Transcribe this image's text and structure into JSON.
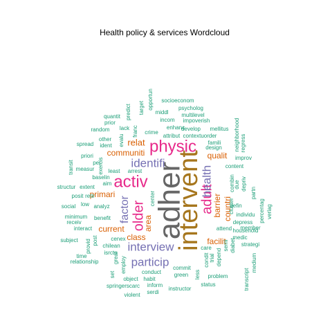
{
  "chart_data": {
    "type": "wordcloud",
    "title": "Health policy & services  Wordcloud",
    "colors": {
      "teal": "#1b9e77",
      "orange": "#d95f02",
      "purple": "#7570b3",
      "magenta": "#e7298a",
      "gold": "#a6761d",
      "gray": "#666666"
    },
    "words": [
      {
        "text": "adher",
        "size": 44,
        "color": "gray",
        "rotate": -90
      },
      {
        "text": "intervent",
        "size": 38,
        "color": "gold",
        "rotate": -90
      },
      {
        "text": "physic",
        "size": 24,
        "color": "magenta",
        "rotate": 0
      },
      {
        "text": "activ",
        "size": 24,
        "color": "magenta",
        "rotate": 0
      },
      {
        "text": "older",
        "size": 20,
        "color": "magenta",
        "rotate": -90
      },
      {
        "text": "adult",
        "size": 20,
        "color": "magenta",
        "rotate": -90
      },
      {
        "text": "health",
        "size": 17,
        "color": "purple",
        "rotate": -90
      },
      {
        "text": "identifi",
        "size": 17,
        "color": "purple",
        "rotate": 0
      },
      {
        "text": "interview",
        "size": 17,
        "color": "purple",
        "rotate": 0
      },
      {
        "text": "particip",
        "size": 17,
        "color": "purple",
        "rotate": 0
      },
      {
        "text": "factor",
        "size": 16,
        "color": "purple",
        "rotate": -90
      },
      {
        "text": "relat",
        "size": 13,
        "color": "orange",
        "rotate": 0
      },
      {
        "text": "communiti",
        "size": 12,
        "color": "orange",
        "rotate": 0
      },
      {
        "text": "qualit",
        "size": 12,
        "color": "orange",
        "rotate": 0
      },
      {
        "text": "primari",
        "size": 12,
        "color": "orange",
        "rotate": 0
      },
      {
        "text": "area",
        "size": 12,
        "color": "orange",
        "rotate": -90
      },
      {
        "text": "current",
        "size": 12,
        "color": "orange",
        "rotate": 0
      },
      {
        "text": "class",
        "size": 12,
        "color": "orange",
        "rotate": 0
      },
      {
        "text": "barrier",
        "size": 12,
        "color": "orange",
        "rotate": -90
      },
      {
        "text": "countri",
        "size": 12,
        "color": "orange",
        "rotate": -90
      },
      {
        "text": "facilit",
        "size": 12,
        "color": "orange",
        "rotate": 0
      },
      {
        "text": "socioeconom",
        "size": 8,
        "color": "teal",
        "rotate": 0
      },
      {
        "text": "psycholog",
        "size": 8,
        "color": "teal",
        "rotate": 0
      },
      {
        "text": "multilevel",
        "size": 8,
        "color": "teal",
        "rotate": 0
      },
      {
        "text": "middl",
        "size": 8,
        "color": "teal",
        "rotate": 0
      },
      {
        "text": "incom",
        "size": 8,
        "color": "teal",
        "rotate": 0
      },
      {
        "text": "impoverish",
        "size": 8,
        "color": "teal",
        "rotate": 0
      },
      {
        "text": "enhanc",
        "size": 8,
        "color": "teal",
        "rotate": 0
      },
      {
        "text": "develop",
        "size": 8,
        "color": "teal",
        "rotate": 0
      },
      {
        "text": "mellitus",
        "size": 8,
        "color": "teal",
        "rotate": 0
      },
      {
        "text": "contextuorder",
        "size": 8,
        "color": "teal",
        "rotate": 0
      },
      {
        "text": "attribut",
        "size": 8,
        "color": "teal",
        "rotate": 0
      },
      {
        "text": "crime",
        "size": 8,
        "color": "teal",
        "rotate": 0
      },
      {
        "text": "famili",
        "size": 8,
        "color": "teal",
        "rotate": 0
      },
      {
        "text": "design",
        "size": 8,
        "color": "teal",
        "rotate": 0
      },
      {
        "text": "improv",
        "size": 8,
        "color": "teal",
        "rotate": 0
      },
      {
        "text": "content",
        "size": 8,
        "color": "teal",
        "rotate": 0
      },
      {
        "text": "individu",
        "size": 8,
        "color": "teal",
        "rotate": 0
      },
      {
        "text": "depress",
        "size": 8,
        "color": "teal",
        "rotate": 0
      },
      {
        "text": "household",
        "size": 8,
        "color": "teal",
        "rotate": 0
      },
      {
        "text": "member",
        "size": 8,
        "color": "teal",
        "rotate": 0
      },
      {
        "text": "medic",
        "size": 8,
        "color": "teal",
        "rotate": 0
      },
      {
        "text": "strategi",
        "size": 8,
        "color": "teal",
        "rotate": 0
      },
      {
        "text": "defin",
        "size": 8,
        "color": "teal",
        "rotate": 0
      },
      {
        "text": "attend",
        "size": 8,
        "color": "teal",
        "rotate": 0
      },
      {
        "text": "care",
        "size": 8,
        "color": "teal",
        "rotate": 0
      },
      {
        "text": "problem",
        "size": 8,
        "color": "teal",
        "rotate": 0
      },
      {
        "text": "status",
        "size": 8,
        "color": "teal",
        "rotate": 0
      },
      {
        "text": "green",
        "size": 8,
        "color": "teal",
        "rotate": 0
      },
      {
        "text": "commit",
        "size": 8,
        "color": "teal",
        "rotate": 0
      },
      {
        "text": "conduct",
        "size": 8,
        "color": "teal",
        "rotate": 0
      },
      {
        "text": "habit",
        "size": 8,
        "color": "teal",
        "rotate": 0
      },
      {
        "text": "object",
        "size": 8,
        "color": "teal",
        "rotate": 0
      },
      {
        "text": "inform",
        "size": 8,
        "color": "teal",
        "rotate": 0
      },
      {
        "text": "instructor",
        "size": 8,
        "color": "teal",
        "rotate": 0
      },
      {
        "text": "springerscarc",
        "size": 8,
        "color": "teal",
        "rotate": 0
      },
      {
        "text": "serdi",
        "size": 8,
        "color": "teal",
        "rotate": 0
      },
      {
        "text": "violent",
        "size": 8,
        "color": "teal",
        "rotate": 0
      },
      {
        "text": "time",
        "size": 8,
        "color": "teal",
        "rotate": 0
      },
      {
        "text": "relationship",
        "size": 8,
        "color": "teal",
        "rotate": 0
      },
      {
        "text": "isrctn",
        "size": 8,
        "color": "teal",
        "rotate": 0
      },
      {
        "text": "chilean",
        "size": 8,
        "color": "teal",
        "rotate": 0
      },
      {
        "text": "cenex",
        "size": 8,
        "color": "teal",
        "rotate": 0
      },
      {
        "text": "subject",
        "size": 8,
        "color": "teal",
        "rotate": 0
      },
      {
        "text": "interact",
        "size": 8,
        "color": "teal",
        "rotate": 0
      },
      {
        "text": "receiv",
        "size": 8,
        "color": "teal",
        "rotate": 0
      },
      {
        "text": "minimum",
        "size": 8,
        "color": "teal",
        "rotate": 0
      },
      {
        "text": "benefit",
        "size": 8,
        "color": "teal",
        "rotate": 0
      },
      {
        "text": "social",
        "size": 8,
        "color": "teal",
        "rotate": 0
      },
      {
        "text": "low",
        "size": 8,
        "color": "teal",
        "rotate": 0
      },
      {
        "text": "analyz",
        "size": 8,
        "color": "teal",
        "rotate": 0
      },
      {
        "text": "posit",
        "size": 8,
        "color": "teal",
        "rotate": 0
      },
      {
        "text": "retir",
        "size": 8,
        "color": "teal",
        "rotate": 0
      },
      {
        "text": "aim",
        "size": 8,
        "color": "teal",
        "rotate": 0
      },
      {
        "text": "structur",
        "size": 8,
        "color": "teal",
        "rotate": 0
      },
      {
        "text": "extent",
        "size": 8,
        "color": "teal",
        "rotate": 0
      },
      {
        "text": "baselin",
        "size": 8,
        "color": "teal",
        "rotate": 0
      },
      {
        "text": "measur",
        "size": 8,
        "color": "teal",
        "rotate": 0
      },
      {
        "text": "least",
        "size": 8,
        "color": "teal",
        "rotate": 0
      },
      {
        "text": "arrest",
        "size": 8,
        "color": "teal",
        "rotate": 0
      },
      {
        "text": "per",
        "size": 8,
        "color": "teal",
        "rotate": 0
      },
      {
        "text": "priori",
        "size": 8,
        "color": "teal",
        "rotate": 0
      },
      {
        "text": "spread",
        "size": 8,
        "color": "teal",
        "rotate": 0
      },
      {
        "text": "ident",
        "size": 8,
        "color": "teal",
        "rotate": 0
      },
      {
        "text": "other",
        "size": 8,
        "color": "teal",
        "rotate": 0
      },
      {
        "text": "random",
        "size": 8,
        "color": "teal",
        "rotate": 0
      },
      {
        "text": "lack",
        "size": 8,
        "color": "teal",
        "rotate": 0
      },
      {
        "text": "prior",
        "size": 8,
        "color": "teal",
        "rotate": 0
      },
      {
        "text": "quantit",
        "size": 8,
        "color": "teal",
        "rotate": 0
      },
      {
        "text": "center",
        "size": 8,
        "color": "teal",
        "rotate": -90
      },
      {
        "text": "great",
        "size": 8,
        "color": "teal",
        "rotate": -90
      },
      {
        "text": "employ",
        "size": 8,
        "color": "teal",
        "rotate": -90
      },
      {
        "text": "set",
        "size": 8,
        "color": "teal",
        "rotate": -90
      },
      {
        "text": "provid",
        "size": 8,
        "color": "teal",
        "rotate": -90
      },
      {
        "text": "post",
        "size": 8,
        "color": "teal",
        "rotate": -90
      },
      {
        "text": "transit",
        "size": 8,
        "color": "teal",
        "rotate": -90
      },
      {
        "text": "exercis",
        "size": 8,
        "color": "teal",
        "rotate": -90
      },
      {
        "text": "evalu",
        "size": 8,
        "color": "teal",
        "rotate": -90
      },
      {
        "text": "franc",
        "size": 8,
        "color": "teal",
        "rotate": -90
      },
      {
        "text": "predict",
        "size": 8,
        "color": "teal",
        "rotate": -90
      },
      {
        "text": "target",
        "size": 8,
        "color": "teal",
        "rotate": -90
      },
      {
        "text": "opportun",
        "size": 8,
        "color": "teal",
        "rotate": -90
      },
      {
        "text": "neighborhood",
        "size": 8,
        "color": "teal",
        "rotate": -90
      },
      {
        "text": "regress",
        "size": 8,
        "color": "teal",
        "rotate": -90
      },
      {
        "text": "combin",
        "size": 8,
        "color": "teal",
        "rotate": -90
      },
      {
        "text": "depriv",
        "size": 8,
        "color": "teal",
        "rotate": -90
      },
      {
        "text": "due",
        "size": 8,
        "color": "teal",
        "rotate": -90
      },
      {
        "text": "partn",
        "size": 8,
        "color": "teal",
        "rotate": -90
      },
      {
        "text": "percentag",
        "size": 8,
        "color": "teal",
        "rotate": -90
      },
      {
        "text": "verlag",
        "size": 8,
        "color": "teal",
        "rotate": -90
      },
      {
        "text": "cluster",
        "size": 8,
        "color": "teal",
        "rotate": -90
      },
      {
        "text": "condit",
        "size": 8,
        "color": "teal",
        "rotate": -90
      },
      {
        "text": "trial",
        "size": 8,
        "color": "teal",
        "rotate": -90
      },
      {
        "text": "depend",
        "size": 8,
        "color": "teal",
        "rotate": -90
      },
      {
        "text": "semi",
        "size": 8,
        "color": "teal",
        "rotate": -90
      },
      {
        "text": "diabet",
        "size": 8,
        "color": "teal",
        "rotate": -90
      },
      {
        "text": "medium",
        "size": 8,
        "color": "teal",
        "rotate": -90
      },
      {
        "text": "less",
        "size": 8,
        "color": "teal",
        "rotate": -90
      },
      {
        "text": "transcript",
        "size": 8,
        "color": "teal",
        "rotate": -90
      }
    ]
  }
}
